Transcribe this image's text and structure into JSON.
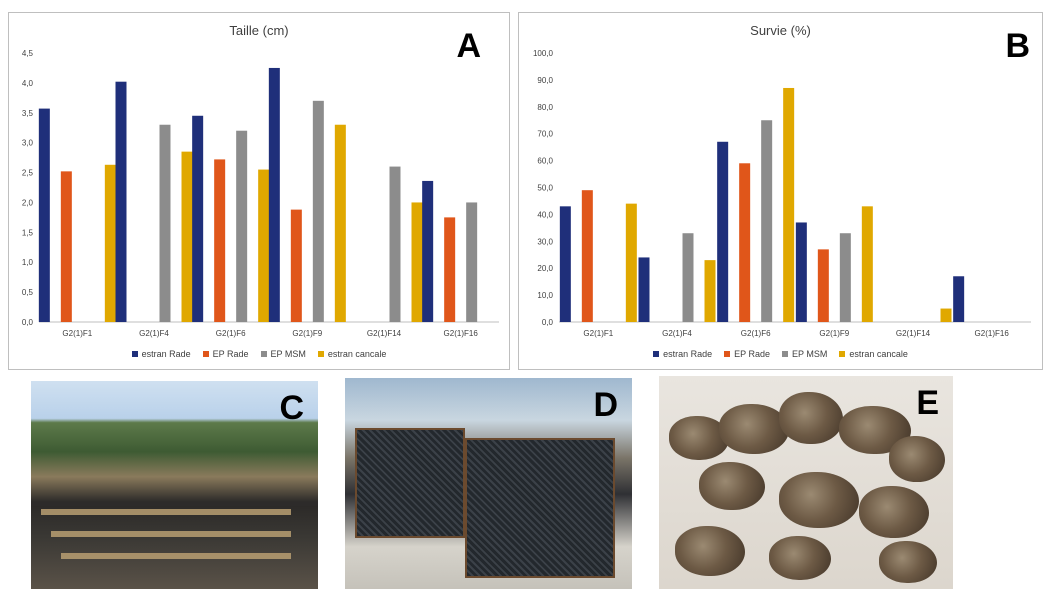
{
  "legend": [
    "estran Rade",
    "EP Rade",
    "EP MSM",
    "estran cancale"
  ],
  "colors": {
    "estran_rade": "#1f2f7a",
    "ep_rade": "#e0561a",
    "ep_msm": "#8c8c8c",
    "estran_cancale": "#e0a800",
    "axis_text": "#404040",
    "axis_line": "#bfbfbf"
  },
  "panel_letters": {
    "a": "A",
    "b": "B",
    "c": "C",
    "d": "D",
    "e": "E"
  },
  "chart_data": [
    {
      "type": "bar",
      "title": "Taille (cm)",
      "categories": [
        "G2(1)F1",
        "G2(1)F4",
        "G2(1)F6",
        "G2(1)F9",
        "G2(1)F14",
        "G2(1)F16"
      ],
      "ylim": [
        0,
        4.5
      ],
      "yticks": [
        "0,0",
        "0,5",
        "1,0",
        "1,5",
        "2,0",
        "2,5",
        "3,0",
        "3,5",
        "4,0",
        "4,5"
      ],
      "grid": false,
      "legend_position": "bottom",
      "series": [
        {
          "name": "estran Rade",
          "values": [
            3.57,
            4.02,
            3.45,
            4.25,
            null,
            2.36
          ]
        },
        {
          "name": "EP Rade",
          "values": [
            2.52,
            null,
            2.72,
            1.88,
            null,
            1.75
          ]
        },
        {
          "name": "EP MSM",
          "values": [
            null,
            3.3,
            3.2,
            3.7,
            2.6,
            2.0
          ]
        },
        {
          "name": "estran cancale",
          "values": [
            2.63,
            2.85,
            2.55,
            3.3,
            2.0,
            null
          ]
        }
      ]
    },
    {
      "type": "bar",
      "title": "Survie (%)",
      "categories": [
        "G2(1)F1",
        "G2(1)F4",
        "G2(1)F6",
        "G2(1)F9",
        "G2(1)F14",
        "G2(1)F16"
      ],
      "ylim": [
        0,
        100
      ],
      "yticks": [
        "0,0",
        "10,0",
        "20,0",
        "30,0",
        "40,0",
        "50,0",
        "60,0",
        "70,0",
        "80,0",
        "90,0",
        "100,0"
      ],
      "grid": false,
      "legend_position": "bottom",
      "series": [
        {
          "name": "estran Rade",
          "values": [
            43,
            24,
            67,
            37,
            null,
            17
          ]
        },
        {
          "name": "EP Rade",
          "values": [
            49,
            null,
            59,
            27,
            null,
            null
          ]
        },
        {
          "name": "EP MSM",
          "values": [
            null,
            33,
            75,
            33,
            null,
            null
          ]
        },
        {
          "name": "estran cancale",
          "values": [
            44,
            23,
            87,
            43,
            5,
            null
          ]
        }
      ]
    }
  ]
}
